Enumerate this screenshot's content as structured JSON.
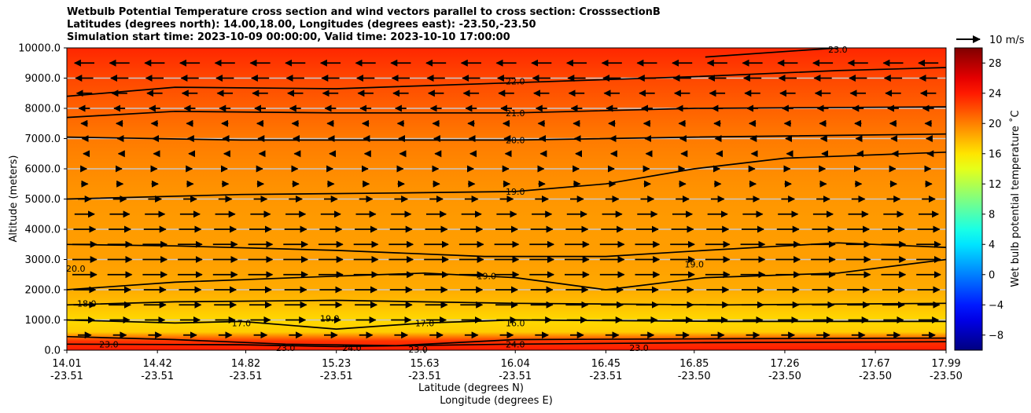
{
  "chart_data": {
    "type": "heatmap",
    "title_lines": [
      "Wetbulb Potential Temperature cross section and wind vectors parallel to cross section: CrosssectionB",
      "Latitudes (degrees north): 14.00,18.00, Longitudes (degrees east): -23.50,-23.50",
      "Simulation start time: 2023-10-09 00:00:00, Valid time: 2023-10-10 17:00:00"
    ],
    "ylabel": "Altitude (meters)",
    "xlabel_1": "Latitude (degrees N)",
    "xlabel_2": "Longitude (degrees E)",
    "ylim": [
      0,
      10000
    ],
    "y_ticks": [
      "0.0",
      "1000.0",
      "2000.0",
      "3000.0",
      "4000.0",
      "5000.0",
      "6000.0",
      "7000.0",
      "8000.0",
      "9000.0",
      "10000.0"
    ],
    "x_ticks": [
      {
        "lat": "14.01",
        "lon": "-23.51"
      },
      {
        "lat": "14.42",
        "lon": "-23.51"
      },
      {
        "lat": "14.82",
        "lon": "-23.51"
      },
      {
        "lat": "15.23",
        "lon": "-23.51"
      },
      {
        "lat": "15.63",
        "lon": "-23.51"
      },
      {
        "lat": "16.04",
        "lon": "-23.51"
      },
      {
        "lat": "16.45",
        "lon": "-23.51"
      },
      {
        "lat": "16.85",
        "lon": "-23.50"
      },
      {
        "lat": "17.26",
        "lon": "-23.50"
      },
      {
        "lat": "17.67",
        "lon": "-23.50"
      },
      {
        "lat": "17.99",
        "lon": "-23.50"
      }
    ],
    "xlim": [
      14.01,
      17.99
    ],
    "grid": "horizontal",
    "colorbar": {
      "label": "Wet bulb potential temperature ˚C",
      "ticks": [
        "−8",
        "−4",
        "0",
        "4",
        "8",
        "12",
        "16",
        "20",
        "24",
        "28"
      ],
      "range": [
        -10,
        30
      ],
      "colormap": "jet"
    },
    "vector_key": "10 m/s",
    "field_profile_celsius": [
      {
        "alt": 0,
        "value": 24
      },
      {
        "alt": 300,
        "value": 23
      },
      {
        "alt": 600,
        "value": 17
      },
      {
        "alt": 1000,
        "value": 16.5
      },
      {
        "alt": 1500,
        "value": 17.5
      },
      {
        "alt": 2000,
        "value": 18.3
      },
      {
        "alt": 3000,
        "value": 18.8
      },
      {
        "alt": 4000,
        "value": 18.9
      },
      {
        "alt": 5000,
        "value": 19.1
      },
      {
        "alt": 6000,
        "value": 19.6
      },
      {
        "alt": 7000,
        "value": 20.2
      },
      {
        "alt": 8000,
        "value": 21.2
      },
      {
        "alt": 9000,
        "value": 22.2
      },
      {
        "alt": 10000,
        "value": 23.5
      }
    ],
    "contours": [
      {
        "label": "24.0",
        "points": [
          [
            14.01,
            200
          ],
          [
            14.8,
            180
          ],
          [
            15.23,
            120
          ],
          [
            16.04,
            200
          ],
          [
            16.9,
            250
          ],
          [
            17.99,
            280
          ]
        ]
      },
      {
        "label": "23.0",
        "points": [
          [
            14.01,
            450
          ],
          [
            14.5,
            350
          ],
          [
            15.0,
            200
          ],
          [
            15.5,
            150
          ],
          [
            16.04,
            350
          ],
          [
            17.0,
            380
          ],
          [
            17.99,
            400
          ]
        ]
      },
      {
        "label": "17.0",
        "points": [
          [
            14.01,
            1000
          ],
          [
            14.5,
            900
          ],
          [
            14.8,
            950
          ],
          [
            15.23,
            700
          ],
          [
            15.63,
            900
          ],
          [
            16.04,
            1000
          ],
          [
            17.0,
            950
          ],
          [
            17.99,
            950
          ]
        ]
      },
      {
        "label": "18.0",
        "points": [
          [
            14.01,
            1500
          ],
          [
            14.5,
            1600
          ],
          [
            15.23,
            1650
          ],
          [
            16.04,
            1550
          ],
          [
            17.0,
            1500
          ],
          [
            17.99,
            1550
          ]
        ]
      },
      {
        "label": "19.0",
        "points": [
          [
            14.01,
            2000
          ],
          [
            14.5,
            2250
          ],
          [
            15.23,
            2450
          ],
          [
            15.63,
            2550
          ],
          [
            16.04,
            2400
          ],
          [
            16.45,
            2000
          ],
          [
            16.9,
            2400
          ],
          [
            17.5,
            2550
          ],
          [
            17.99,
            3000
          ]
        ]
      },
      {
        "label": "19.0",
        "points": [
          [
            14.01,
            3500
          ],
          [
            14.5,
            3450
          ],
          [
            15.23,
            3300
          ],
          [
            15.9,
            3100
          ],
          [
            16.45,
            3100
          ],
          [
            16.9,
            3300
          ],
          [
            17.5,
            3550
          ],
          [
            17.99,
            3400
          ]
        ]
      },
      {
        "label": "19.0",
        "points": [
          [
            14.01,
            5000
          ],
          [
            14.8,
            5150
          ],
          [
            15.5,
            5200
          ],
          [
            16.04,
            5250
          ],
          [
            16.45,
            5500
          ],
          [
            16.85,
            6000
          ],
          [
            17.26,
            6350
          ],
          [
            17.99,
            6550
          ]
        ]
      },
      {
        "label": "20.0",
        "points": [
          [
            14.01,
            7050
          ],
          [
            14.8,
            6950
          ],
          [
            15.5,
            6950
          ],
          [
            16.04,
            6950
          ],
          [
            16.85,
            7050
          ],
          [
            17.99,
            7150
          ]
        ]
      },
      {
        "label": "21.0",
        "points": [
          [
            14.01,
            7700
          ],
          [
            14.5,
            7900
          ],
          [
            15.23,
            7850
          ],
          [
            16.04,
            7850
          ],
          [
            16.85,
            8000
          ],
          [
            17.99,
            8050
          ]
        ]
      },
      {
        "label": "22.0",
        "points": [
          [
            14.01,
            8400
          ],
          [
            14.5,
            8700
          ],
          [
            15.23,
            8650
          ],
          [
            16.04,
            8850
          ],
          [
            16.85,
            9050
          ],
          [
            17.5,
            9250
          ],
          [
            17.99,
            9350
          ]
        ]
      },
      {
        "label": "23.0",
        "points": [
          [
            16.9,
            9700
          ],
          [
            17.5,
            10000
          ]
        ]
      }
    ],
    "contour_labels": [
      {
        "text": "22.0",
        "lat": 16.04,
        "alt": 8900
      },
      {
        "text": "21.0",
        "lat": 16.04,
        "alt": 7850
      },
      {
        "text": "20.0",
        "lat": 16.04,
        "alt": 6950
      },
      {
        "text": "19.0",
        "lat": 16.04,
        "alt": 5250
      },
      {
        "text": "19.0",
        "lat": 15.91,
        "alt": 2450
      },
      {
        "text": "19.0",
        "lat": 16.85,
        "alt": 2850
      },
      {
        "text": "18.0",
        "lat": 14.1,
        "alt": 1550
      },
      {
        "text": "17.0",
        "lat": 15.63,
        "alt": 900
      },
      {
        "text": "19.0",
        "lat": 15.2,
        "alt": 1050
      },
      {
        "text": "17.0",
        "lat": 14.8,
        "alt": 900
      },
      {
        "text": "16.0",
        "lat": 16.04,
        "alt": 900
      },
      {
        "text": "23.0",
        "lat": 14.2,
        "alt": 200
      },
      {
        "text": "24.0",
        "lat": 16.04,
        "alt": 200
      },
      {
        "text": "23.0",
        "lat": 16.6,
        "alt": 80
      },
      {
        "text": "23.0",
        "lat": 15.0,
        "alt": 80
      },
      {
        "text": "24.0",
        "lat": 15.3,
        "alt": 80
      },
      {
        "text": "23.0",
        "lat": 15.6,
        "alt": 30
      },
      {
        "text": "23.0",
        "lat": 17.5,
        "alt": 9950
      },
      {
        "text": "20.0",
        "lat": 14.05,
        "alt": 2700
      }
    ],
    "wind_u_profile_ms": [
      {
        "alt": 500,
        "u": 6
      },
      {
        "alt": 1000,
        "u": 9
      },
      {
        "alt": 1500,
        "u": 10
      },
      {
        "alt": 2000,
        "u": 10
      },
      {
        "alt": 2500,
        "u": 11
      },
      {
        "alt": 3000,
        "u": 11
      },
      {
        "alt": 3500,
        "u": 11
      },
      {
        "alt": 4000,
        "u": 10
      },
      {
        "alt": 4500,
        "u": 9
      },
      {
        "alt": 5000,
        "u": 6
      },
      {
        "alt": 5500,
        "u": 3
      },
      {
        "alt": 6000,
        "u": 2
      },
      {
        "alt": 6500,
        "u": -1
      },
      {
        "alt": 7000,
        "u": -2
      },
      {
        "alt": 7500,
        "u": -3
      },
      {
        "alt": 8000,
        "u": -5
      },
      {
        "alt": 8500,
        "u": -7
      },
      {
        "alt": 9000,
        "u": -8
      },
      {
        "alt": 9500,
        "u": -9
      }
    ]
  }
}
